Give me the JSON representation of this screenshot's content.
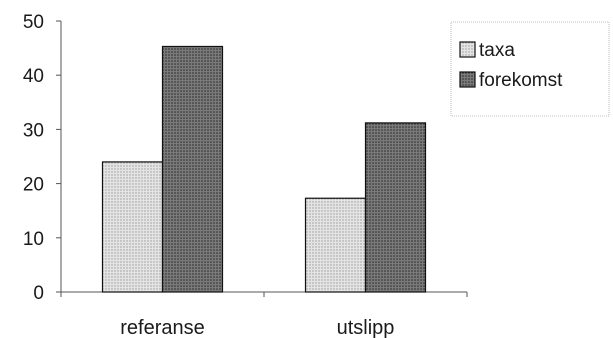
{
  "chart_data": {
    "type": "bar",
    "categories": [
      "referanse",
      "utslipp"
    ],
    "series": [
      {
        "name": "taxa",
        "values": [
          24,
          17.3
        ],
        "color": "#d6d6d6"
      },
      {
        "name": "forekomst",
        "values": [
          45.3,
          31.2
        ],
        "color": "#666666"
      }
    ],
    "ylim": [
      0,
      50
    ],
    "yticks": [
      0,
      10,
      20,
      30,
      40,
      50
    ],
    "grid": false,
    "legend": "right",
    "title": "",
    "xlabel": "",
    "ylabel": ""
  }
}
